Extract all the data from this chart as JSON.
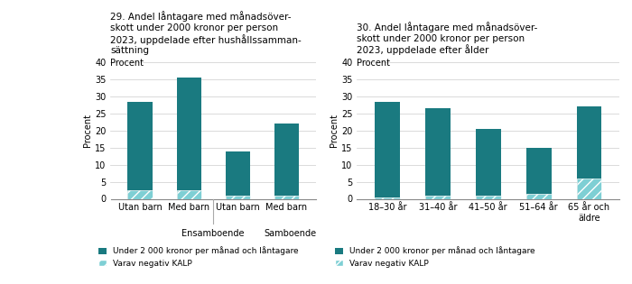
{
  "chart1": {
    "title": "29. Andel låntagare med månadsöver-\nskott under 2000 kronor per person\n2023, uppdelade efter hushållssamman-\nsättning",
    "ylabel": "Procent",
    "categories": [
      "Utan barn",
      "Med barn",
      "Utan barn",
      "Med barn"
    ],
    "group_labels": [
      "Ensamboende",
      "Samboende"
    ],
    "values_total": [
      28.5,
      35.5,
      14.0,
      22.0
    ],
    "values_kalp": [
      2.5,
      2.5,
      1.0,
      1.0
    ],
    "ylim": [
      0,
      40
    ],
    "yticks": [
      0,
      5,
      10,
      15,
      20,
      25,
      30,
      35,
      40
    ]
  },
  "chart2": {
    "title": "30. Andel låntagare med månadsöver-\nskott under 2000 kronor per person\n2023, uppdelade efter ålder",
    "ylabel": "Procent",
    "categories": [
      "18–30 år",
      "31–40 år",
      "41–50 år",
      "51–64 år",
      "65 år och\näldre"
    ],
    "values_total": [
      28.5,
      26.5,
      20.5,
      15.0,
      27.0
    ],
    "values_kalp": [
      0.5,
      1.0,
      1.0,
      1.5,
      6.0
    ],
    "ylim": [
      0,
      40
    ],
    "yticks": [
      0,
      5,
      10,
      15,
      20,
      25,
      30,
      35,
      40
    ]
  },
  "bar_color": "#1a7a80",
  "kalp_color": "#7ecfd4",
  "kalp_hatch": "///",
  "legend_total": "Under 2 000 kronor per månad och låntagare",
  "legend_kalp": "Varav negativ KALP",
  "bg_color": "#ffffff"
}
